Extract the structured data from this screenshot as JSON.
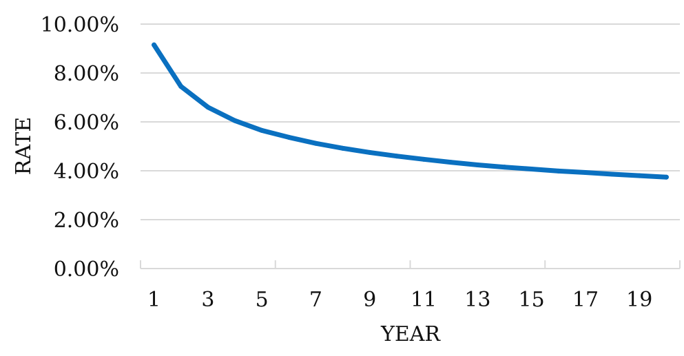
{
  "chart_data": {
    "type": "line",
    "title": "",
    "xlabel": "YEAR",
    "ylabel": "RATE",
    "x": [
      1,
      2,
      3,
      4,
      5,
      6,
      7,
      8,
      9,
      10,
      11,
      12,
      13,
      14,
      15,
      16,
      17,
      18,
      19,
      20
    ],
    "x_tick_labels": [
      "1",
      "3",
      "5",
      "7",
      "9",
      "11",
      "13",
      "15",
      "17",
      "19"
    ],
    "y_tick_labels": [
      "0.00%",
      "2.00%",
      "4.00%",
      "6.00%",
      "8.00%",
      "10.00%"
    ],
    "ylim": [
      0,
      10
    ],
    "y_ticks": [
      0,
      2,
      4,
      6,
      8,
      10
    ],
    "grid": true,
    "legend": "none",
    "series": [
      {
        "values": [
          9.15,
          7.45,
          6.6,
          6.05,
          5.65,
          5.37,
          5.12,
          4.92,
          4.75,
          4.6,
          4.47,
          4.35,
          4.24,
          4.15,
          4.07,
          3.99,
          3.93,
          3.86,
          3.8,
          3.74
        ],
        "color": "#0A70C0"
      }
    ],
    "colors": {
      "grid": "#D9D9D9",
      "axis": "#D9D9D9",
      "line": "#0A70C0"
    }
  }
}
